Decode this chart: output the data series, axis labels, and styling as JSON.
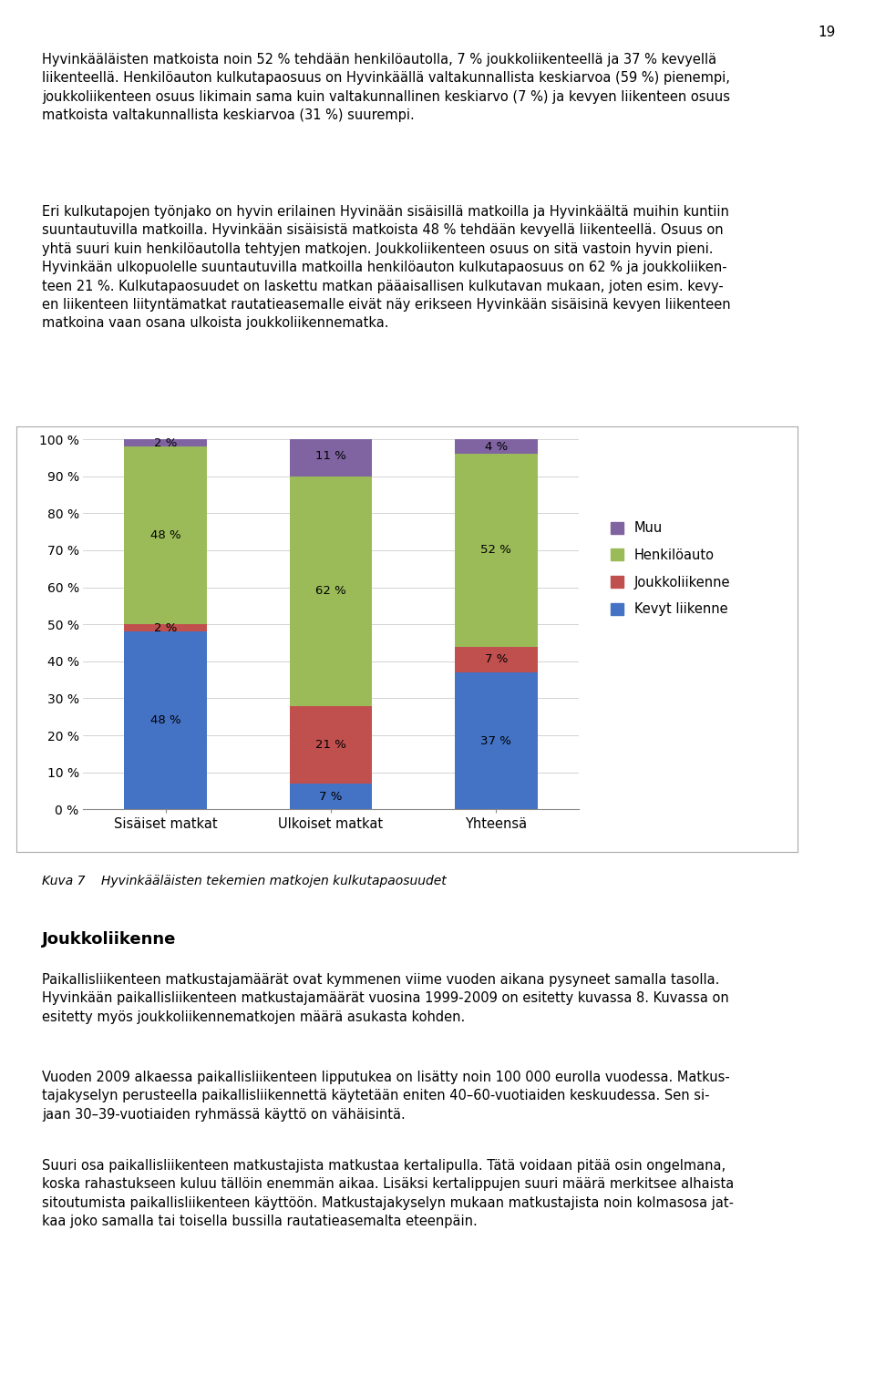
{
  "categories": [
    "Sisäiset matkat",
    "Ulkoiset matkat",
    "Yhteensä"
  ],
  "series": {
    "Kevyt liikenne": [
      48,
      7,
      37
    ],
    "Joukkoliikenne": [
      2,
      21,
      7
    ],
    "Henkilöauto": [
      48,
      62,
      52
    ],
    "Muu": [
      2,
      11,
      4
    ]
  },
  "colors": {
    "Kevyt liikenne": "#4472C4",
    "Joukkoliikenne": "#C0504D",
    "Henkilöauto": "#9BBB59",
    "Muu": "#8064A2"
  },
  "legend_order": [
    "Muu",
    "Henkilöauto",
    "Joukkoliikenne",
    "Kevyt liikenne"
  ],
  "ylim": [
    0,
    100
  ],
  "yticks": [
    0,
    10,
    20,
    30,
    40,
    50,
    60,
    70,
    80,
    90,
    100
  ],
  "bar_width": 0.5,
  "page_number": "19",
  "para1": "Hyvinkääläisten matkoista noin 52 % tehdään henkilöautolla, 7 % joukkoliikenteellä ja 37 % kevyellä\nliikenteellä. Henkilöauton kulkutapaosuus on Hyvinkäällä valtakunnallista keskiarvoa (59 %) pienempi,\njoukkoliikenteen osuus likimain sama kuin valtakunnallinen keskiarvo (7 %) ja kevyen liikenteen osuus\nmatkoista valtakunnallista keskiarvoa (31 %) suurempi.",
  "para2": "Eri kulkutapojen työnjako on hyvin erilainen Hyvinään sisäisillä matkoilla ja Hyvinkäältä muihin kuntiin\nsuuntautuvilla matkoilla. Hyvinkään sisäisistä matkoista 48 % tehdään kevyellä liikenteellä. Osuus on\nyhtä suuri kuin henkilöautolla tehtyjen matkojen. Joukkoliikenteen osuus on sitä vastoin hyvin pieni.\nHyvinkään ulkopuolelle suuntautuvilla matkoilla henkilöauton kulkutapaosuus on 62 % ja joukkoliiken-\nteen 21 %. Kulkutapaosuudet on laskettu matkan pääaisallisen kulkutavan mukaan, joten esim. kevy-\nen liikenteen liityntämatkat rautatieasemalle eivät näy erikseen Hyvinkään sisäisinä kevyen liikenteen\nmatkoina vaan osana ulkoista joukkoliikennematka.",
  "caption": "Kuva 7    Hyvinkääläisten tekemien matkojen kulkutapaosuudet",
  "section_title": "Joukkoliikenne",
  "sec_para1": "Paikallisliikenteen matkustajamäärät ovat kymmenen viime vuoden aikana pysyneet samalla tasolla.\nHyvinkään paikallisliikenteen matkustajamäärät vuosina 1999-2009 on esitetty kuvassa 8. Kuvassa on\nesitetty myös joukkoliikennematkojen määrä asukasta kohden.",
  "sec_para2": "Vuoden 2009 alkaessa paikallisliikenteen lipputukea on lisätty noin 100 000 eurolla vuodessa. Matkus-\ntajakyselyn perusteella paikallisliikennettä käytetään eniten 40–60-vuotiaiden keskuudessa. Sen si-\njaan 30–39-vuotiaiden ryhmässä käyttö on vähäisintä.",
  "sec_para3": "Suuri osa paikallisliikenteen matkustajista matkustaa kertalipulla. Tätä voidaan pitää osin ongelmana,\nkoska rahastukseen kuluu tällöin enemmän aikaa. Lisäksi kertalippujen suuri määrä merkitsee alhaista\nsitoutumista paikallisliikenteen käyttöön. Matkustajakyselyn mukaan matkustajista noin kolmasosa jat-\nkaa joko samalla tai toisella bussilla rautatieasemalta eteenpäin.",
  "figsize": [
    9.6,
    15.19
  ],
  "dpi": 100
}
